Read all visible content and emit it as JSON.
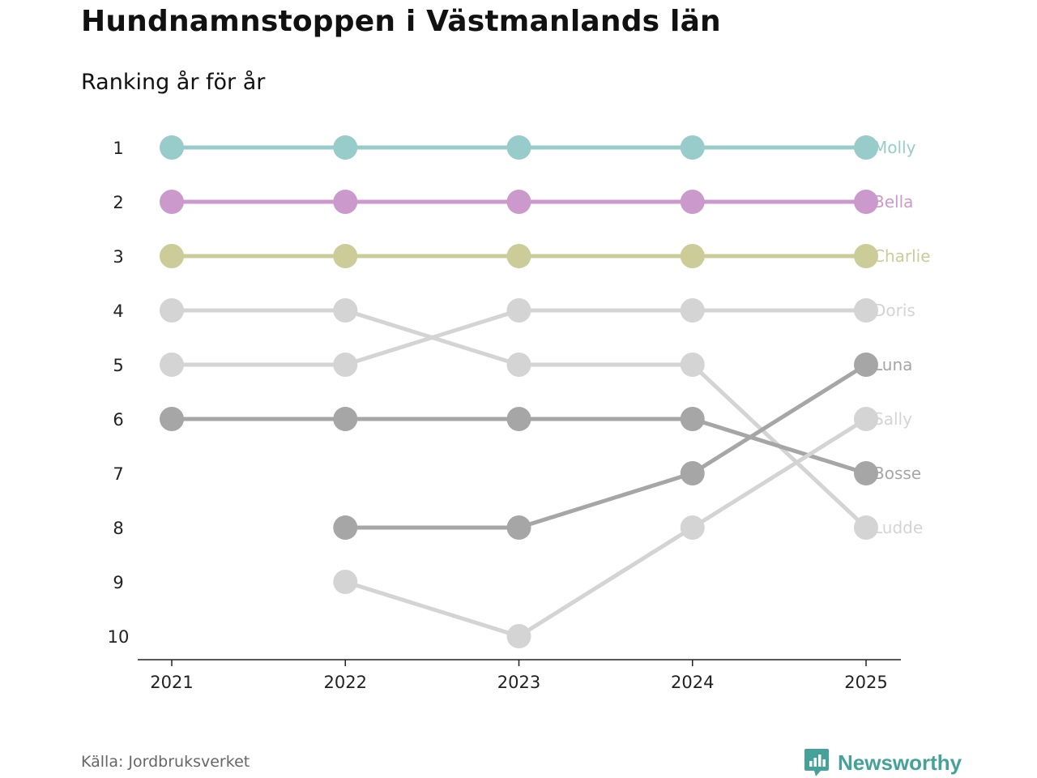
{
  "title": "Hundnamnstoppen i Västmanlands län",
  "subtitle": "Ranking år för år",
  "source": "Källa: Jordbruksverket",
  "brand": "Newsworthy",
  "chart_data": {
    "type": "line",
    "subtype": "bump",
    "x": [
      "2021",
      "2022",
      "2023",
      "2024",
      "2025"
    ],
    "y_ticks": [
      "1",
      "2",
      "3",
      "4",
      "5",
      "6",
      "7",
      "8",
      "9",
      "10"
    ],
    "ylim": [
      1,
      10
    ],
    "y_inverted": true,
    "series": [
      {
        "name": "Molly",
        "color": "#98cccb",
        "values": [
          1,
          1,
          1,
          1,
          1
        ]
      },
      {
        "name": "Bella",
        "color": "#cc99cc",
        "values": [
          2,
          2,
          2,
          2,
          2
        ]
      },
      {
        "name": "Charlie",
        "color": "#cccc99",
        "values": [
          3,
          3,
          3,
          3,
          3
        ]
      },
      {
        "name": "Doris",
        "color": "#d4d4d4",
        "values": [
          5,
          5,
          4,
          4,
          4
        ]
      },
      {
        "name": "Luna",
        "color": "#a6a6a6",
        "values": [
          null,
          8,
          8,
          7,
          5
        ]
      },
      {
        "name": "Sally",
        "color": "#d4d4d4",
        "values": [
          null,
          9,
          10,
          8,
          6
        ]
      },
      {
        "name": "Bosse",
        "color": "#a6a6a6",
        "values": [
          6,
          6,
          6,
          6,
          7
        ]
      },
      {
        "name": "Ludde",
        "color": "#d4d4d4",
        "values": [
          4,
          4,
          5,
          5,
          8
        ]
      }
    ]
  }
}
